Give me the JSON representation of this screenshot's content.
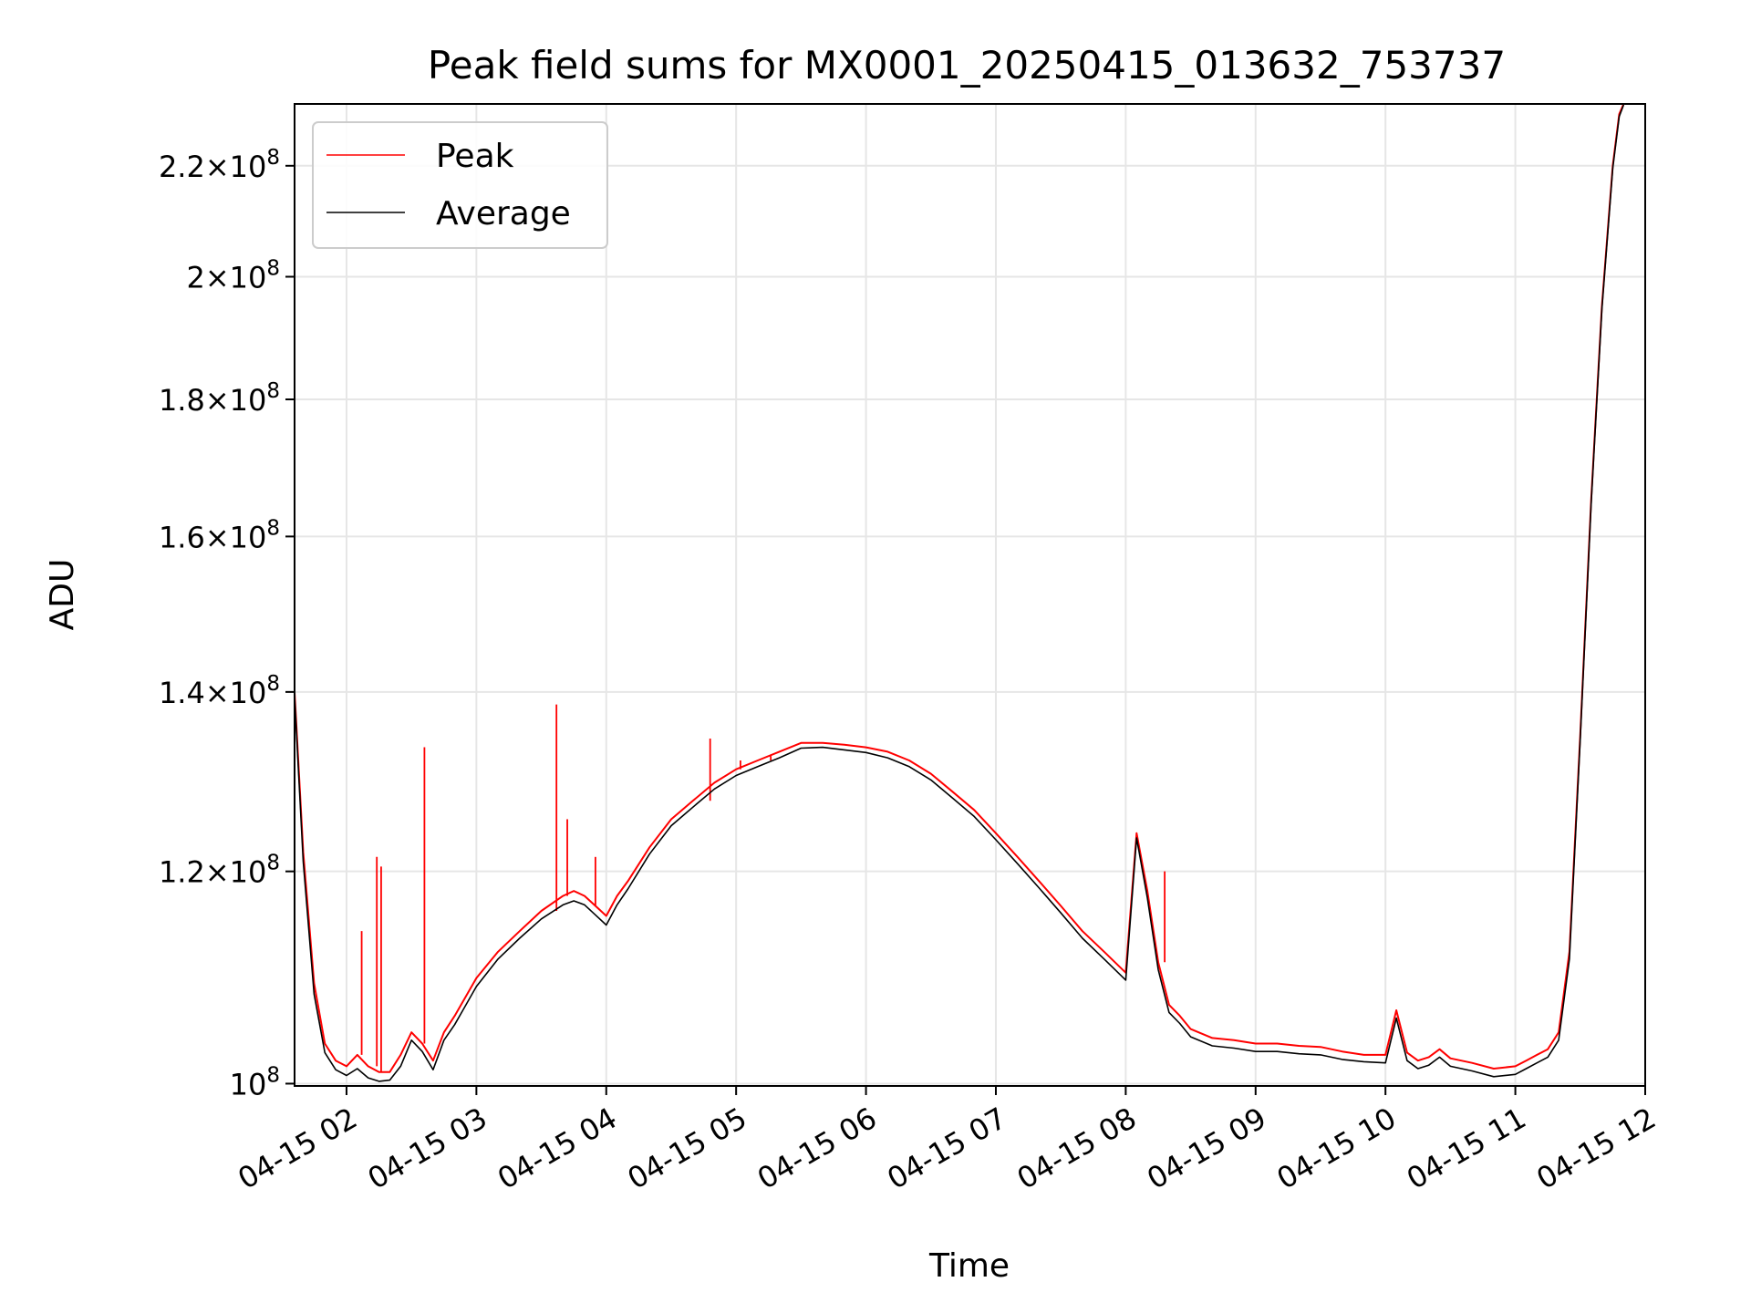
{
  "chart_data": {
    "type": "line",
    "title": "Peak field sums for MX0001_20250415_013632_753737",
    "xlabel": "Time",
    "ylabel": "ADU",
    "x_scale": "time",
    "y_scale": "log",
    "grid": true,
    "legend_position": "top-left",
    "xlim": [
      "04-15 01:36",
      "04-15 12:00"
    ],
    "ylim": [
      99800000,
      232000000
    ],
    "x_ticks": [
      "04-15 02",
      "04-15 03",
      "04-15 04",
      "04-15 05",
      "04-15 06",
      "04-15 07",
      "04-15 08",
      "04-15 09",
      "04-15 10",
      "04-15 11",
      "04-15 12"
    ],
    "y_ticks": [
      {
        "value": 100000000,
        "mantissa": "",
        "exponent": "8"
      },
      {
        "value": 120000000,
        "mantissa": "1.2",
        "exponent": "8"
      },
      {
        "value": 140000000,
        "mantissa": "1.4",
        "exponent": "8"
      },
      {
        "value": 160000000,
        "mantissa": "1.6",
        "exponent": "8"
      },
      {
        "value": 180000000,
        "mantissa": "1.8",
        "exponent": "8"
      },
      {
        "value": 200000000,
        "mantissa": "2",
        "exponent": "8"
      },
      {
        "value": 220000000,
        "mantissa": "2.2",
        "exponent": "8"
      }
    ],
    "x": [
      "04-15 01:36",
      "04-15 01:40",
      "04-15 01:45",
      "04-15 01:50",
      "04-15 01:55",
      "04-15 02:00",
      "04-15 02:05",
      "04-15 02:10",
      "04-15 02:15",
      "04-15 02:20",
      "04-15 02:25",
      "04-15 02:30",
      "04-15 02:35",
      "04-15 02:40",
      "04-15 02:45",
      "04-15 02:50",
      "04-15 03:00",
      "04-15 03:10",
      "04-15 03:20",
      "04-15 03:30",
      "04-15 03:40",
      "04-15 03:45",
      "04-15 03:50",
      "04-15 03:55",
      "04-15 04:00",
      "04-15 04:05",
      "04-15 04:10",
      "04-15 04:20",
      "04-15 04:30",
      "04-15 04:40",
      "04-15 04:50",
      "04-15 05:00",
      "04-15 05:10",
      "04-15 05:20",
      "04-15 05:30",
      "04-15 05:40",
      "04-15 05:50",
      "04-15 06:00",
      "04-15 06:10",
      "04-15 06:20",
      "04-15 06:30",
      "04-15 06:40",
      "04-15 06:50",
      "04-15 07:00",
      "04-15 07:10",
      "04-15 07:20",
      "04-15 07:30",
      "04-15 07:40",
      "04-15 07:50",
      "04-15 08:00",
      "04-15 08:05",
      "04-15 08:10",
      "04-15 08:15",
      "04-15 08:20",
      "04-15 08:25",
      "04-15 08:30",
      "04-15 08:40",
      "04-15 08:50",
      "04-15 09:00",
      "04-15 09:10",
      "04-15 09:20",
      "04-15 09:30",
      "04-15 09:40",
      "04-15 09:50",
      "04-15 10:00",
      "04-15 10:05",
      "04-15 10:10",
      "04-15 10:15",
      "04-15 10:20",
      "04-15 10:25",
      "04-15 10:30",
      "04-15 10:40",
      "04-15 10:50",
      "04-15 11:00",
      "04-15 11:05",
      "04-15 11:10",
      "04-15 11:15",
      "04-15 11:20",
      "04-15 11:25",
      "04-15 11:30",
      "04-15 11:35",
      "04-15 11:40",
      "04-15 11:45",
      "04-15 11:48",
      "04-15 11:50"
    ],
    "series": [
      {
        "name": "Peak",
        "color": "#ff0000",
        "values": [
          140000000,
          122000000,
          109000000,
          103500000,
          102000000,
          101500000,
          102500000,
          101500000,
          101000000,
          101000000,
          102500000,
          104500000,
          103500000,
          102000000,
          104500000,
          106000000,
          109500000,
          112000000,
          114000000,
          116000000,
          117500000,
          118000000,
          117500000,
          116500000,
          115500000,
          117500000,
          119000000,
          122500000,
          125500000,
          127500000,
          129500000,
          131000000,
          132000000,
          133000000,
          134000000,
          134000000,
          133800000,
          133500000,
          133000000,
          132000000,
          130500000,
          128500000,
          126500000,
          124000000,
          121500000,
          119000000,
          116500000,
          114000000,
          112000000,
          110000000,
          124000000,
          118000000,
          111000000,
          107000000,
          106000000,
          104800000,
          104000000,
          103800000,
          103500000,
          103500000,
          103300000,
          103200000,
          102800000,
          102500000,
          102500000,
          106500000,
          102700000,
          102000000,
          102300000,
          103000000,
          102200000,
          101800000,
          101300000,
          101500000,
          102000000,
          102500000,
          103000000,
          104500000,
          112000000,
          135000000,
          165000000,
          195000000,
          220000000,
          230000000,
          232000000
        ],
        "spikes": [
          {
            "x": "04-15 02:07",
            "value": 114000000
          },
          {
            "x": "04-15 02:14",
            "value": 121500000
          },
          {
            "x": "04-15 02:16",
            "value": 120500000
          },
          {
            "x": "04-15 02:36",
            "value": 133500000
          },
          {
            "x": "04-15 03:37",
            "value": 138500000
          },
          {
            "x": "04-15 03:42",
            "value": 125500000
          },
          {
            "x": "04-15 03:55",
            "value": 121500000
          },
          {
            "x": "04-15 04:48",
            "value": 134500000
          },
          {
            "x": "04-15 05:02",
            "value": 132000000
          },
          {
            "x": "04-15 05:16",
            "value": 132500000
          },
          {
            "x": "04-15 08:18",
            "value": 120000000
          }
        ]
      },
      {
        "name": "Average",
        "color": "#000000",
        "values": [
          139500000,
          121000000,
          108000000,
          102700000,
          101200000,
          100700000,
          101300000,
          100500000,
          100200000,
          100300000,
          101500000,
          103800000,
          102800000,
          101200000,
          103800000,
          105200000,
          108700000,
          111300000,
          113300000,
          115200000,
          116600000,
          117000000,
          116600000,
          115600000,
          114600000,
          116600000,
          118200000,
          121800000,
          124800000,
          126800000,
          128800000,
          130300000,
          131300000,
          132300000,
          133400000,
          133500000,
          133200000,
          132900000,
          132300000,
          131300000,
          129800000,
          127800000,
          125800000,
          123300000,
          120800000,
          118300000,
          115800000,
          113300000,
          111300000,
          109300000,
          123500000,
          117300000,
          110300000,
          106300000,
          105300000,
          104100000,
          103300000,
          103100000,
          102800000,
          102800000,
          102600000,
          102500000,
          102100000,
          101900000,
          101800000,
          105800000,
          102000000,
          101300000,
          101600000,
          102300000,
          101500000,
          101100000,
          100600000,
          100800000,
          101300000,
          101800000,
          102300000,
          103800000,
          111300000,
          134500000,
          164500000,
          194500000,
          219500000,
          229500000,
          231800000
        ]
      }
    ]
  }
}
